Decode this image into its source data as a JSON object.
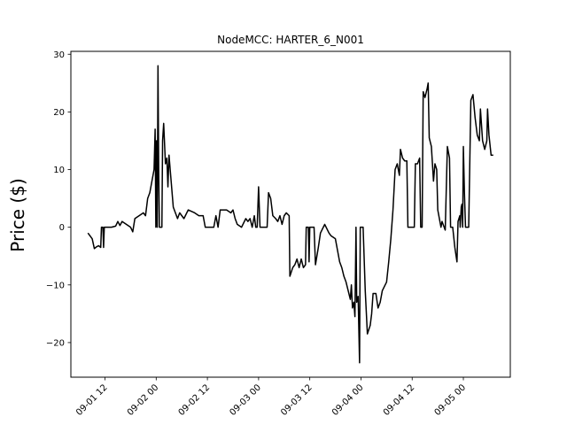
{
  "chart_data": {
    "type": "line",
    "title": "NodeMCC: HARTER_6_N001",
    "xlabel": "",
    "ylabel": "Price ($)",
    "ylim": [
      -26,
      30.5
    ],
    "xlim": [
      "2022-09-01 04:00",
      "2022-09-05 11:00"
    ],
    "yticks": [
      -20,
      -10,
      0,
      10,
      20,
      30
    ],
    "xticks": [
      {
        "value": "2022-09-01 12:00",
        "label": "09-01 12"
      },
      {
        "value": "2022-09-02 00:00",
        "label": "09-02 00"
      },
      {
        "value": "2022-09-02 12:00",
        "label": "09-02 12"
      },
      {
        "value": "2022-09-03 00:00",
        "label": "09-03 00"
      },
      {
        "value": "2022-09-03 12:00",
        "label": "09-03 12"
      },
      {
        "value": "2022-09-04 00:00",
        "label": "09-04 00"
      },
      {
        "value": "2022-09-04 12:00",
        "label": "09-04 12"
      },
      {
        "value": "2022-09-05 00:00",
        "label": "09-05 00"
      }
    ],
    "grid": false,
    "line_color": "#000000",
    "series": [
      {
        "points": [
          [
            "2022-09-01 08:00",
            -1.0
          ],
          [
            "2022-09-01 08:30",
            -1.5
          ],
          [
            "2022-09-01 09:00",
            -2.0
          ],
          [
            "2022-09-01 09:30",
            -3.7
          ],
          [
            "2022-09-01 10:00",
            -3.4
          ],
          [
            "2022-09-01 10:30",
            -3.2
          ],
          [
            "2022-09-01 11:00",
            -3.5
          ],
          [
            "2022-09-01 11:10",
            0.0
          ],
          [
            "2022-09-01 11:30",
            0.0
          ],
          [
            "2022-09-01 11:40",
            -3.5
          ],
          [
            "2022-09-01 11:50",
            0.0
          ],
          [
            "2022-09-01 12:30",
            0.0
          ],
          [
            "2022-09-01 13:30",
            0.0
          ],
          [
            "2022-09-01 14:30",
            0.2
          ],
          [
            "2022-09-01 15:00",
            1.0
          ],
          [
            "2022-09-01 15:30",
            0.3
          ],
          [
            "2022-09-01 16:00",
            1.0
          ],
          [
            "2022-09-01 17:00",
            0.5
          ],
          [
            "2022-09-01 18:00",
            0.0
          ],
          [
            "2022-09-01 18:30",
            -0.8
          ],
          [
            "2022-09-01 19:00",
            1.5
          ],
          [
            "2022-09-01 20:00",
            2.0
          ],
          [
            "2022-09-01 21:00",
            2.5
          ],
          [
            "2022-09-01 21:30",
            2.0
          ],
          [
            "2022-09-01 22:00",
            5.0
          ],
          [
            "2022-09-01 22:30",
            6.0
          ],
          [
            "2022-09-01 23:00",
            8.0
          ],
          [
            "2022-09-01 23:30",
            10.0
          ],
          [
            "2022-09-01 23:45",
            17.0
          ],
          [
            "2022-09-01 23:55",
            0.0
          ],
          [
            "2022-09-02 00:05",
            15.0
          ],
          [
            "2022-09-02 00:15",
            0.0
          ],
          [
            "2022-09-02 00:25",
            28.0
          ],
          [
            "2022-09-02 00:35",
            10.0
          ],
          [
            "2022-09-02 00:45",
            0.0
          ],
          [
            "2022-09-02 01:20",
            0.0
          ],
          [
            "2022-09-02 01:30",
            15.0
          ],
          [
            "2022-09-02 01:45",
            18.0
          ],
          [
            "2022-09-02 02:10",
            11.0
          ],
          [
            "2022-09-02 02:30",
            12.0
          ],
          [
            "2022-09-02 02:45",
            7.0
          ],
          [
            "2022-09-02 03:00",
            12.5
          ],
          [
            "2022-09-02 03:30",
            8.0
          ],
          [
            "2022-09-02 04:00",
            3.5
          ],
          [
            "2022-09-02 05:00",
            1.5
          ],
          [
            "2022-09-02 05:30",
            2.5
          ],
          [
            "2022-09-02 06:30",
            1.5
          ],
          [
            "2022-09-02 07:30",
            3.0
          ],
          [
            "2022-09-02 09:00",
            2.5
          ],
          [
            "2022-09-02 10:00",
            2.0
          ],
          [
            "2022-09-02 11:00",
            2.0
          ],
          [
            "2022-09-02 11:30",
            0.0
          ],
          [
            "2022-09-02 13:30",
            0.0
          ],
          [
            "2022-09-02 14:00",
            2.0
          ],
          [
            "2022-09-02 14:30",
            0.0
          ],
          [
            "2022-09-02 15:00",
            3.0
          ],
          [
            "2022-09-02 16:30",
            3.0
          ],
          [
            "2022-09-02 17:30",
            2.5
          ],
          [
            "2022-09-02 18:00",
            3.0
          ],
          [
            "2022-09-02 18:30",
            1.5
          ],
          [
            "2022-09-02 19:00",
            0.5
          ],
          [
            "2022-09-02 20:00",
            0.0
          ],
          [
            "2022-09-02 21:00",
            1.5
          ],
          [
            "2022-09-02 21:30",
            1.0
          ],
          [
            "2022-09-02 22:00",
            1.5
          ],
          [
            "2022-09-02 22:30",
            0.0
          ],
          [
            "2022-09-02 23:00",
            2.0
          ],
          [
            "2022-09-02 23:20",
            0.0
          ],
          [
            "2022-09-02 23:40",
            0.0
          ],
          [
            "2022-09-03 00:00",
            7.0
          ],
          [
            "2022-09-03 00:20",
            0.0
          ],
          [
            "2022-09-03 02:00",
            0.0
          ],
          [
            "2022-09-03 02:20",
            6.0
          ],
          [
            "2022-09-03 02:50",
            5.0
          ],
          [
            "2022-09-03 03:20",
            2.0
          ],
          [
            "2022-09-03 04:00",
            1.5
          ],
          [
            "2022-09-03 04:30",
            1.0
          ],
          [
            "2022-09-03 05:00",
            2.0
          ],
          [
            "2022-09-03 05:30",
            0.5
          ],
          [
            "2022-09-03 06:00",
            2.0
          ],
          [
            "2022-09-03 06:30",
            2.5
          ],
          [
            "2022-09-03 07:10",
            2.0
          ],
          [
            "2022-09-03 07:20",
            -8.5
          ],
          [
            "2022-09-03 08:00",
            -7.0
          ],
          [
            "2022-09-03 08:30",
            -6.5
          ],
          [
            "2022-09-03 09:00",
            -5.5
          ],
          [
            "2022-09-03 09:30",
            -7.0
          ],
          [
            "2022-09-03 10:00",
            -5.5
          ],
          [
            "2022-09-03 10:30",
            -7.0
          ],
          [
            "2022-09-03 11:00",
            -6.5
          ],
          [
            "2022-09-03 11:10",
            0.0
          ],
          [
            "2022-09-03 11:40",
            0.0
          ],
          [
            "2022-09-03 11:50",
            -6.0
          ],
          [
            "2022-09-03 12:00",
            0.0
          ],
          [
            "2022-09-03 13:00",
            0.0
          ],
          [
            "2022-09-03 13:20",
            -6.5
          ],
          [
            "2022-09-03 14:00",
            -3.5
          ],
          [
            "2022-09-03 14:30",
            -1.0
          ],
          [
            "2022-09-03 15:30",
            0.5
          ],
          [
            "2022-09-03 16:30",
            -1.0
          ],
          [
            "2022-09-03 17:00",
            -1.5
          ],
          [
            "2022-09-03 18:00",
            -2.0
          ],
          [
            "2022-09-03 18:30",
            -4.0
          ],
          [
            "2022-09-03 19:00",
            -6.0
          ],
          [
            "2022-09-03 19:30",
            -7.0
          ],
          [
            "2022-09-03 20:00",
            -8.5
          ],
          [
            "2022-09-03 20:30",
            -9.5
          ],
          [
            "2022-09-03 21:00",
            -11.0
          ],
          [
            "2022-09-03 21:30",
            -12.5
          ],
          [
            "2022-09-03 21:45",
            -10.0
          ],
          [
            "2022-09-03 22:00",
            -14.0
          ],
          [
            "2022-09-03 22:20",
            -13.0
          ],
          [
            "2022-09-03 22:35",
            -15.5
          ],
          [
            "2022-09-03 22:50",
            0.0
          ],
          [
            "2022-09-03 23:00",
            -13.0
          ],
          [
            "2022-09-03 23:20",
            -12.0
          ],
          [
            "2022-09-03 23:40",
            -23.5
          ],
          [
            "2022-09-03 23:50",
            0.0
          ],
          [
            "2022-09-04 00:30",
            0.0
          ],
          [
            "2022-09-04 01:00",
            -11.0
          ],
          [
            "2022-09-04 01:30",
            -18.5
          ],
          [
            "2022-09-04 02:10",
            -17.0
          ],
          [
            "2022-09-04 02:30",
            -15.0
          ],
          [
            "2022-09-04 02:50",
            -11.5
          ],
          [
            "2022-09-04 03:30",
            -11.5
          ],
          [
            "2022-09-04 04:00",
            -14.0
          ],
          [
            "2022-09-04 04:30",
            -13.0
          ],
          [
            "2022-09-04 05:00",
            -11.0
          ],
          [
            "2022-09-04 06:00",
            -9.5
          ],
          [
            "2022-09-04 06:30",
            -6.0
          ],
          [
            "2022-09-04 07:00",
            -2.0
          ],
          [
            "2022-09-04 07:30",
            3.0
          ],
          [
            "2022-09-04 08:00",
            10.0
          ],
          [
            "2022-09-04 08:30",
            11.0
          ],
          [
            "2022-09-04 09:00",
            9.0
          ],
          [
            "2022-09-04 09:15",
            13.5
          ],
          [
            "2022-09-04 09:45",
            12.0
          ],
          [
            "2022-09-04 10:15",
            11.5
          ],
          [
            "2022-09-04 10:45",
            11.5
          ],
          [
            "2022-09-04 11:00",
            0.0
          ],
          [
            "2022-09-04 12:30",
            0.0
          ],
          [
            "2022-09-04 12:45",
            11.0
          ],
          [
            "2022-09-04 13:15",
            11.0
          ],
          [
            "2022-09-04 13:45",
            12.0
          ],
          [
            "2022-09-04 14:00",
            0.0
          ],
          [
            "2022-09-04 14:20",
            0.0
          ],
          [
            "2022-09-04 14:35",
            23.5
          ],
          [
            "2022-09-04 15:00",
            22.5
          ],
          [
            "2022-09-04 15:30",
            24.0
          ],
          [
            "2022-09-04 15:45",
            25.0
          ],
          [
            "2022-09-04 16:00",
            15.5
          ],
          [
            "2022-09-04 16:30",
            14.0
          ],
          [
            "2022-09-04 17:00",
            8.0
          ],
          [
            "2022-09-04 17:20",
            11.0
          ],
          [
            "2022-09-04 17:45",
            10.0
          ],
          [
            "2022-09-04 18:00",
            3.0
          ],
          [
            "2022-09-04 18:45",
            0.0
          ],
          [
            "2022-09-04 19:00",
            1.0
          ],
          [
            "2022-09-04 19:45",
            -0.5
          ],
          [
            "2022-09-04 20:15",
            14.0
          ],
          [
            "2022-09-04 20:45",
            12.0
          ],
          [
            "2022-09-04 21:00",
            0.0
          ],
          [
            "2022-09-04 21:30",
            0.0
          ],
          [
            "2022-09-04 22:00",
            -3.5
          ],
          [
            "2022-09-04 22:30",
            -6.0
          ],
          [
            "2022-09-04 22:45",
            1.0
          ],
          [
            "2022-09-04 23:10",
            2.0
          ],
          [
            "2022-09-04 23:15",
            0.0
          ],
          [
            "2022-09-04 23:30",
            3.5
          ],
          [
            "2022-09-04 23:40",
            4.0
          ],
          [
            "2022-09-04 23:50",
            0.0
          ],
          [
            "2022-09-05 00:00",
            14.0
          ],
          [
            "2022-09-05 00:15",
            6.0
          ],
          [
            "2022-09-05 00:30",
            0.0
          ],
          [
            "2022-09-05 01:15",
            0.0
          ],
          [
            "2022-09-05 01:45",
            22.0
          ],
          [
            "2022-09-05 02:15",
            23.0
          ],
          [
            "2022-09-05 02:45",
            19.0
          ],
          [
            "2022-09-05 03:15",
            16.0
          ],
          [
            "2022-09-05 03:45",
            15.0
          ],
          [
            "2022-09-05 04:00",
            20.5
          ],
          [
            "2022-09-05 04:30",
            15.0
          ],
          [
            "2022-09-05 05:00",
            13.5
          ],
          [
            "2022-09-05 05:30",
            15.0
          ],
          [
            "2022-09-05 05:40",
            20.5
          ],
          [
            "2022-09-05 06:00",
            16.0
          ],
          [
            "2022-09-05 06:30",
            12.5
          ],
          [
            "2022-09-05 07:00",
            12.5
          ]
        ]
      }
    ]
  }
}
